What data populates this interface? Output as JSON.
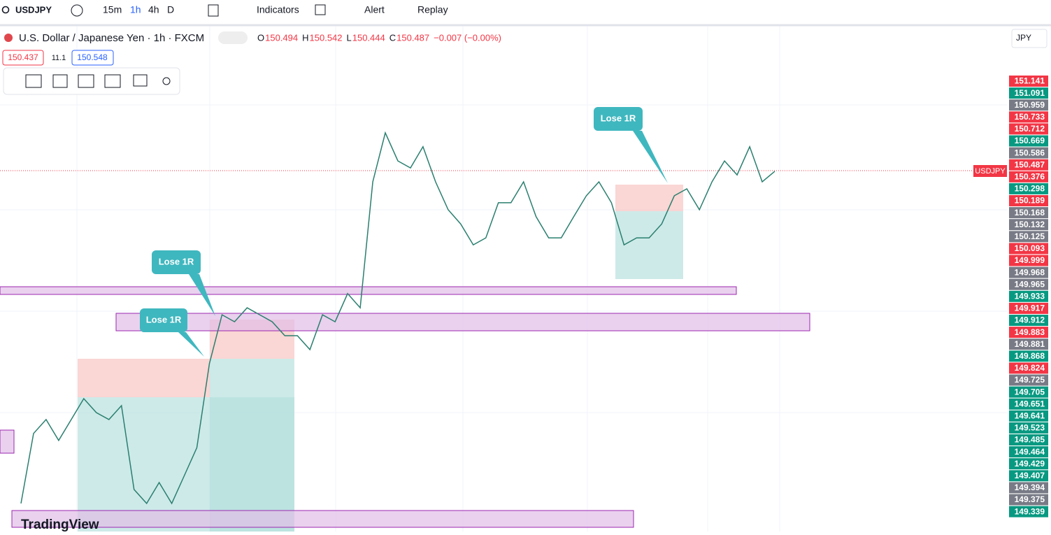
{
  "toolbar": {
    "symbol": "USDJPY",
    "intervals": [
      "15m",
      "1h",
      "4h",
      "D"
    ],
    "indicators": "Indicators",
    "alert": "Alert",
    "replay": "Replay"
  },
  "legend": {
    "title": "U.S. Dollar / Japanese Yen · 1h · FXCM",
    "ohlc": [
      {
        "label": "O",
        "value": 150.494
      },
      {
        "label": "H",
        "value": 150.542
      },
      {
        "label": "L",
        "value": 150.444
      },
      {
        "label": "C",
        "value": 150.487
      }
    ],
    "change": "−0.007 (−0.00%)",
    "bid": 150.437,
    "spread": 11.1,
    "ask": 150.548
  },
  "currency": "JPY",
  "callouts": [
    "Lose 1R",
    "Lose 1R",
    "Lose 1R"
  ],
  "symbol_tag": "USDJPY",
  "price_scale": {
    "labels": [
      {
        "value": 151.141,
        "color": "#f23645"
      },
      {
        "value": 151.091,
        "color": "#089981"
      },
      {
        "value": 150.959,
        "color": "#787b86"
      },
      {
        "value": 150.733,
        "color": "#f23645"
      },
      {
        "value": 150.712,
        "color": "#f23645"
      },
      {
        "value": 150.669,
        "color": "#089981"
      },
      {
        "value": 150.586,
        "color": "#787b86"
      },
      {
        "value": 150.487,
        "color": "#f23645"
      },
      {
        "value": 150.376,
        "color": "#f23645"
      },
      {
        "value": 150.298,
        "color": "#089981"
      },
      {
        "value": 150.189,
        "color": "#f23645"
      },
      {
        "value": 150.168,
        "color": "#787b86"
      },
      {
        "value": 150.132,
        "color": "#787b86"
      },
      {
        "value": 150.125,
        "color": "#787b86"
      },
      {
        "value": 150.093,
        "color": "#f23645"
      },
      {
        "value": 149.999,
        "color": "#f23645"
      },
      {
        "value": 149.968,
        "color": "#787b86"
      },
      {
        "value": 149.965,
        "color": "#787b86"
      },
      {
        "value": 149.933,
        "color": "#089981"
      },
      {
        "value": 149.917,
        "color": "#f23645"
      },
      {
        "value": 149.912,
        "color": "#089981"
      },
      {
        "value": 149.883,
        "color": "#f23645"
      },
      {
        "value": 149.881,
        "color": "#787b86"
      },
      {
        "value": 149.868,
        "color": "#089981"
      },
      {
        "value": 149.824,
        "color": "#f23645"
      },
      {
        "value": 149.725,
        "color": "#787b86"
      },
      {
        "value": 149.705,
        "color": "#089981"
      },
      {
        "value": 149.651,
        "color": "#089981"
      },
      {
        "value": 149.641,
        "color": "#089981"
      },
      {
        "value": 149.523,
        "color": "#089981"
      },
      {
        "value": 149.485,
        "color": "#089981"
      },
      {
        "value": 149.464,
        "color": "#089981"
      },
      {
        "value": 149.429,
        "color": "#089981"
      },
      {
        "value": 149.407,
        "color": "#089981"
      },
      {
        "value": 149.394,
        "color": "#787b86"
      },
      {
        "value": 149.375,
        "color": "#787b86"
      },
      {
        "value": 149.339,
        "color": "#089981"
      }
    ]
  },
  "closes": [
    149.388,
    149.619,
    149.665,
    149.596,
    149.665,
    149.734,
    149.688,
    149.665,
    149.711,
    149.434,
    149.388,
    149.457,
    149.388,
    149.48,
    149.572,
    149.85,
    150.011,
    149.988,
    150.034,
    150.011,
    149.988,
    149.942,
    149.942,
    149.896,
    150.011,
    149.988,
    150.081,
    150.034,
    150.45,
    150.612,
    150.519,
    150.496,
    150.566,
    150.45,
    150.358,
    150.311,
    150.242,
    150.265,
    150.381,
    150.381,
    150.45,
    150.335,
    150.265,
    150.265,
    150.335,
    150.404,
    150.45,
    150.381,
    150.242,
    150.265,
    150.265,
    150.311,
    150.404,
    150.427,
    150.358,
    150.45,
    150.519,
    150.473,
    150.566,
    150.45,
    150.485
  ],
  "logo": "TradingView"
}
